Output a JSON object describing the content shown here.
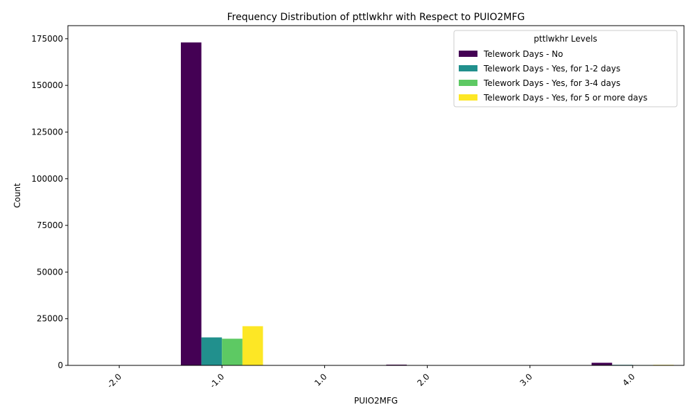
{
  "chart_data": {
    "type": "bar",
    "title": "Frequency Distribution of pttlwkhr with Respect to PUIO2MFG",
    "xlabel": "PUIO2MFG",
    "ylabel": "Count",
    "categories": [
      "-2.0",
      "-1.0",
      "1.0",
      "2.0",
      "3.0",
      "4.0"
    ],
    "ylim": [
      0,
      182000
    ],
    "yticks": [
      0,
      25000,
      50000,
      75000,
      100000,
      125000,
      150000,
      175000
    ],
    "legend_title": "pttlwkhr Levels",
    "legend_position": "top-right",
    "grid": false,
    "series": [
      {
        "name": "Telework Days - No",
        "color": "#440154",
        "values": [
          0,
          173000,
          0,
          400,
          0,
          1400
        ]
      },
      {
        "name": "Telework Days - Yes, for 1-2 days",
        "color": "#21908d",
        "values": [
          0,
          15000,
          0,
          0,
          0,
          300
        ]
      },
      {
        "name": "Telework Days - Yes, for 3-4 days",
        "color": "#5dc963",
        "values": [
          0,
          14300,
          0,
          0,
          0,
          200
        ]
      },
      {
        "name": "Telework Days - Yes, for 5 or more days",
        "color": "#fde725",
        "values": [
          0,
          21000,
          0,
          0,
          0,
          300
        ]
      }
    ]
  }
}
